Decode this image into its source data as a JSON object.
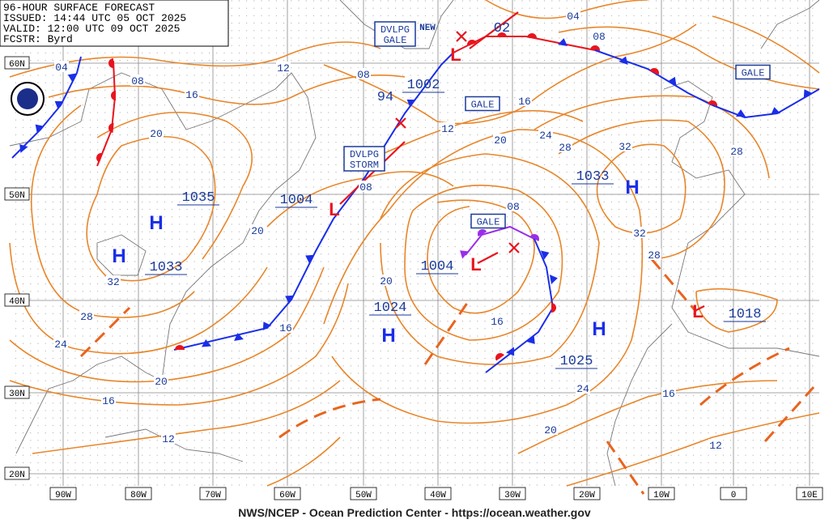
{
  "header": {
    "lines": [
      "96-HOUR SURFACE FORECAST",
      "ISSUED: 14:44 UTC 05 OCT 2025",
      "VALID:  12:00 UTC 09 OCT 2025",
      "FCSTR:  Byrd"
    ]
  },
  "latitude_labels": [
    "60N",
    "50N",
    "40N",
    "30N",
    "20N"
  ],
  "longitude_labels": [
    "90W",
    "80W",
    "70W",
    "60W",
    "50W",
    "40W",
    "30W",
    "20W",
    "10W",
    "0",
    "10E"
  ],
  "highs": [
    {
      "symbol": "H",
      "pressure": "1035"
    },
    {
      "symbol": "H",
      "pressure": "1033"
    },
    {
      "symbol": "H",
      "pressure": "1033"
    },
    {
      "symbol": "H",
      "pressure": "1024"
    },
    {
      "symbol": "H",
      "pressure": "1025"
    }
  ],
  "lows": [
    {
      "symbol": "L",
      "pressure": "1004"
    },
    {
      "symbol": "L",
      "pressure": "1004"
    },
    {
      "symbol": "L",
      "pressure": "1018"
    },
    {
      "symbol": "L",
      "pressure": "1002"
    }
  ],
  "other_pressures": [
    "94",
    "02"
  ],
  "isobar_labels": [
    "04",
    "08",
    "16",
    "20",
    "12",
    "08",
    "12",
    "16",
    "20",
    "24",
    "28",
    "32",
    "08",
    "04",
    "28",
    "08",
    "08",
    "20",
    "32",
    "32",
    "28",
    "20",
    "16",
    "28",
    "24",
    "16",
    "20",
    "16",
    "24",
    "16",
    "20",
    "12",
    "12"
  ],
  "warnings": [
    {
      "lines": [
        "DVLPG",
        "GALE"
      ]
    },
    {
      "lines": [
        "GALE"
      ]
    },
    {
      "lines": [
        "DVLPG",
        "STORM"
      ]
    },
    {
      "lines": [
        "GALE"
      ]
    },
    {
      "lines": [
        "GALE"
      ]
    }
  ],
  "new_label": "NEW",
  "footer": "NWS/NCEP - Ocean Prediction Center - https://ocean.weather.gov"
}
